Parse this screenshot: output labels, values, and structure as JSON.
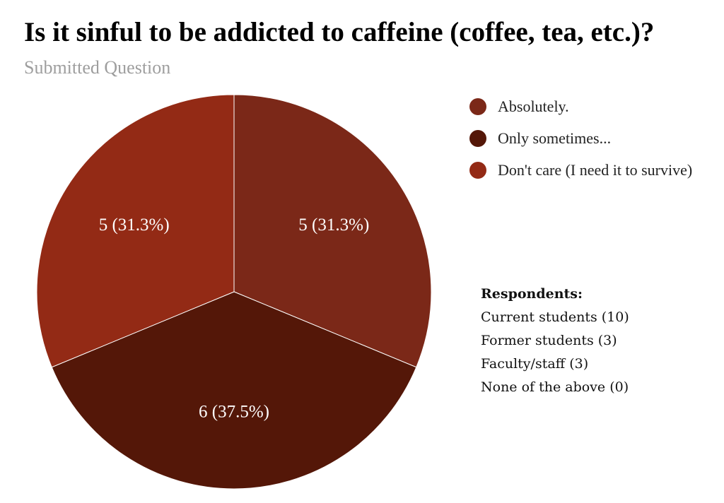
{
  "chart_data": {
    "type": "pie",
    "title": "Is it sinful to be addicted to caffeine (coffee, tea, etc.)?",
    "subtitle": "Submitted Question",
    "slices": [
      {
        "label": "Absolutely.",
        "value": 5,
        "percent": 31.3,
        "data_label": "5 (31.3%)",
        "color": "#7b2818"
      },
      {
        "label": "Only sometimes...",
        "value": 6,
        "percent": 37.5,
        "data_label": "6 (37.5%)",
        "color": "#541708"
      },
      {
        "label": "Don't care (I need it to survive)",
        "value": 5,
        "percent": 31.3,
        "data_label": "5 (31.3%)",
        "color": "#932a15"
      }
    ],
    "start_angle_deg": 0,
    "direction": "clockwise",
    "legend_position": "right"
  },
  "respondents": {
    "heading": "Respondents:",
    "lines": [
      "Current students (10)",
      "Former students (3)",
      "Faculty/staff (3)",
      "None of the above (0)"
    ]
  }
}
